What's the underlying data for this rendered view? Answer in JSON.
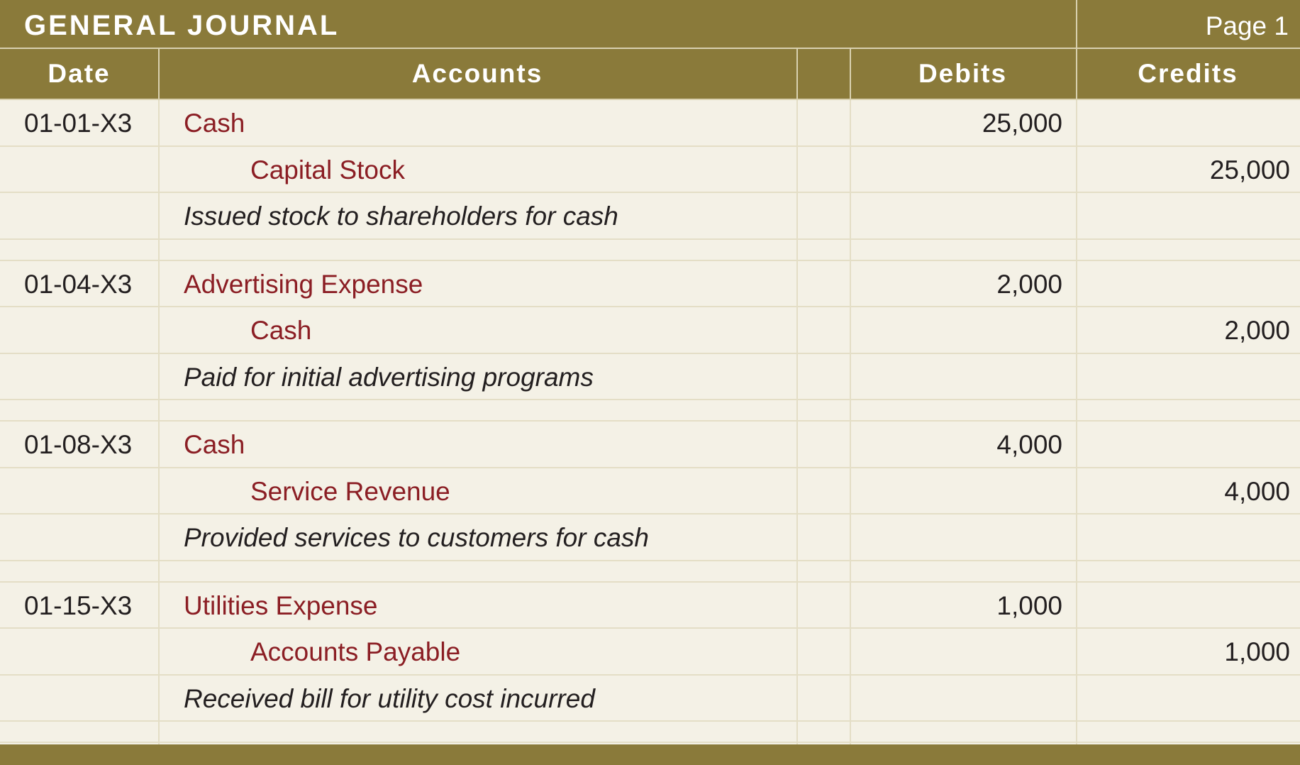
{
  "journal": {
    "title": "GENERAL JOURNAL",
    "page": "Page 1",
    "columns": {
      "date": "Date",
      "accounts": "Accounts",
      "debits": "Debits",
      "credits": "Credits"
    },
    "entries": [
      {
        "date": "01-01-X3",
        "debit_account": "Cash",
        "debit": "25,000",
        "credit_account": "Capital Stock",
        "credit": "25,000",
        "memo": "Issued stock to shareholders for cash"
      },
      {
        "date": "01-04-X3",
        "debit_account": "Advertising Expense",
        "debit": "2,000",
        "credit_account": "Cash",
        "credit": "2,000",
        "memo": "Paid for initial advertising programs"
      },
      {
        "date": "01-08-X3",
        "debit_account": "Cash",
        "debit": "4,000",
        "credit_account": "Service Revenue",
        "credit": "4,000",
        "memo": "Provided services to customers for cash"
      },
      {
        "date": "01-15-X3",
        "debit_account": "Utilities Expense",
        "debit": "1,000",
        "credit_account": "Accounts Payable",
        "credit": "1,000",
        "memo": "Received bill for utility cost incurred"
      }
    ]
  },
  "colors": {
    "header": "#8a7a3a",
    "body": "#f4f1e6",
    "account_text": "#8b1e24"
  }
}
